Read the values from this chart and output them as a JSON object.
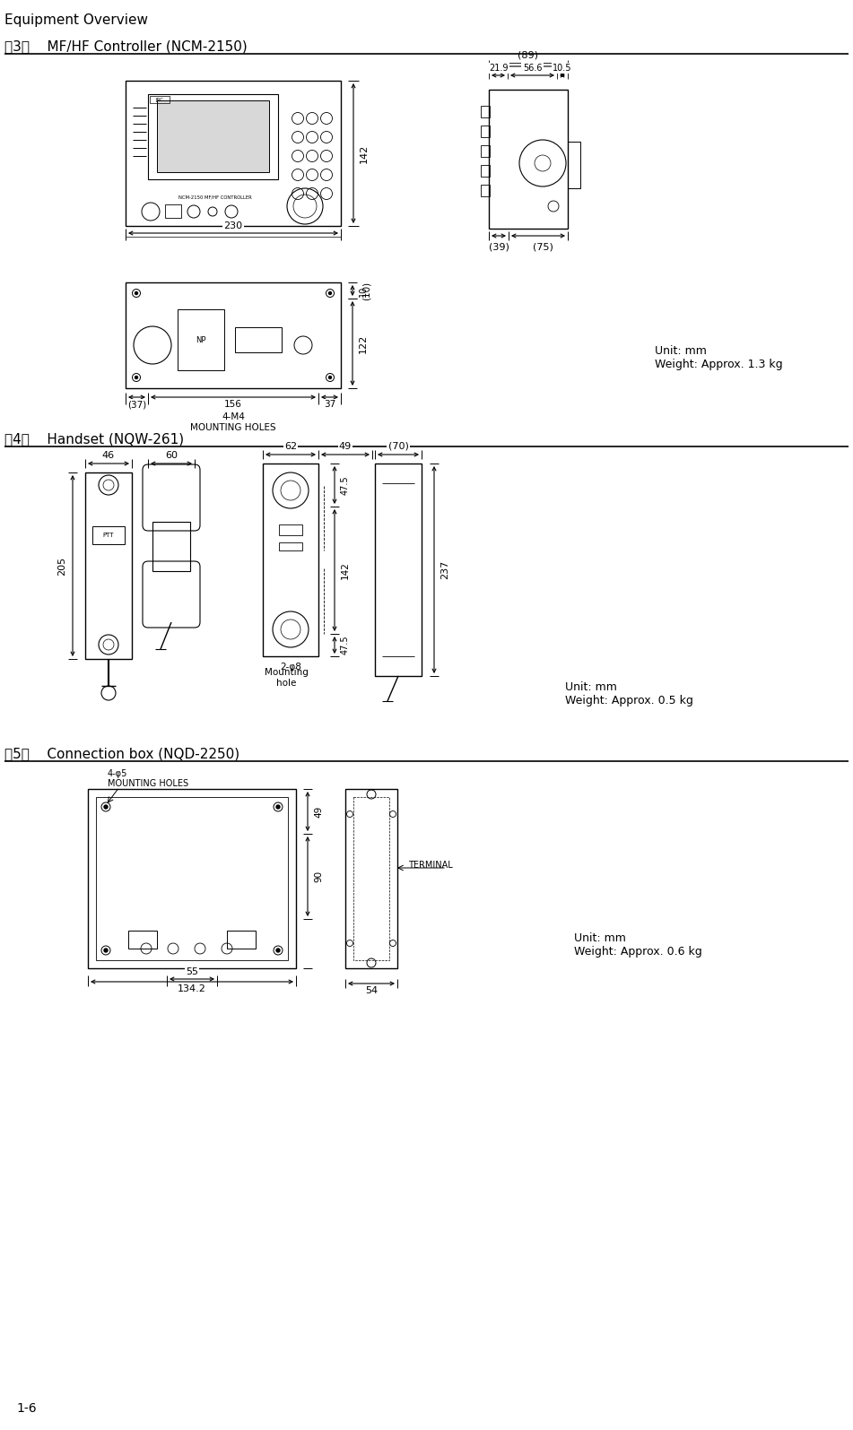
{
  "title": "Equipment Overview",
  "section3_title": "（3）    MF/HF Controller (NCM-2150)",
  "section4_title": "（4）    Handset (NQW-261)",
  "section5_title": "（5）    Connection box (NQD-2250)",
  "footer": "1-6",
  "unit_weight_13": "Unit: mm\nWeight: Approx. 1.3 kg",
  "unit_weight_05": "Unit: mm\nWeight: Approx. 0.5 kg",
  "unit_weight_06": "Unit: mm\nWeight: Approx. 0.6 kg",
  "mounting_hole_label": "Mounting\nhole",
  "bg_color": "#ffffff",
  "line_color": "#000000",
  "text_color": "#000000"
}
